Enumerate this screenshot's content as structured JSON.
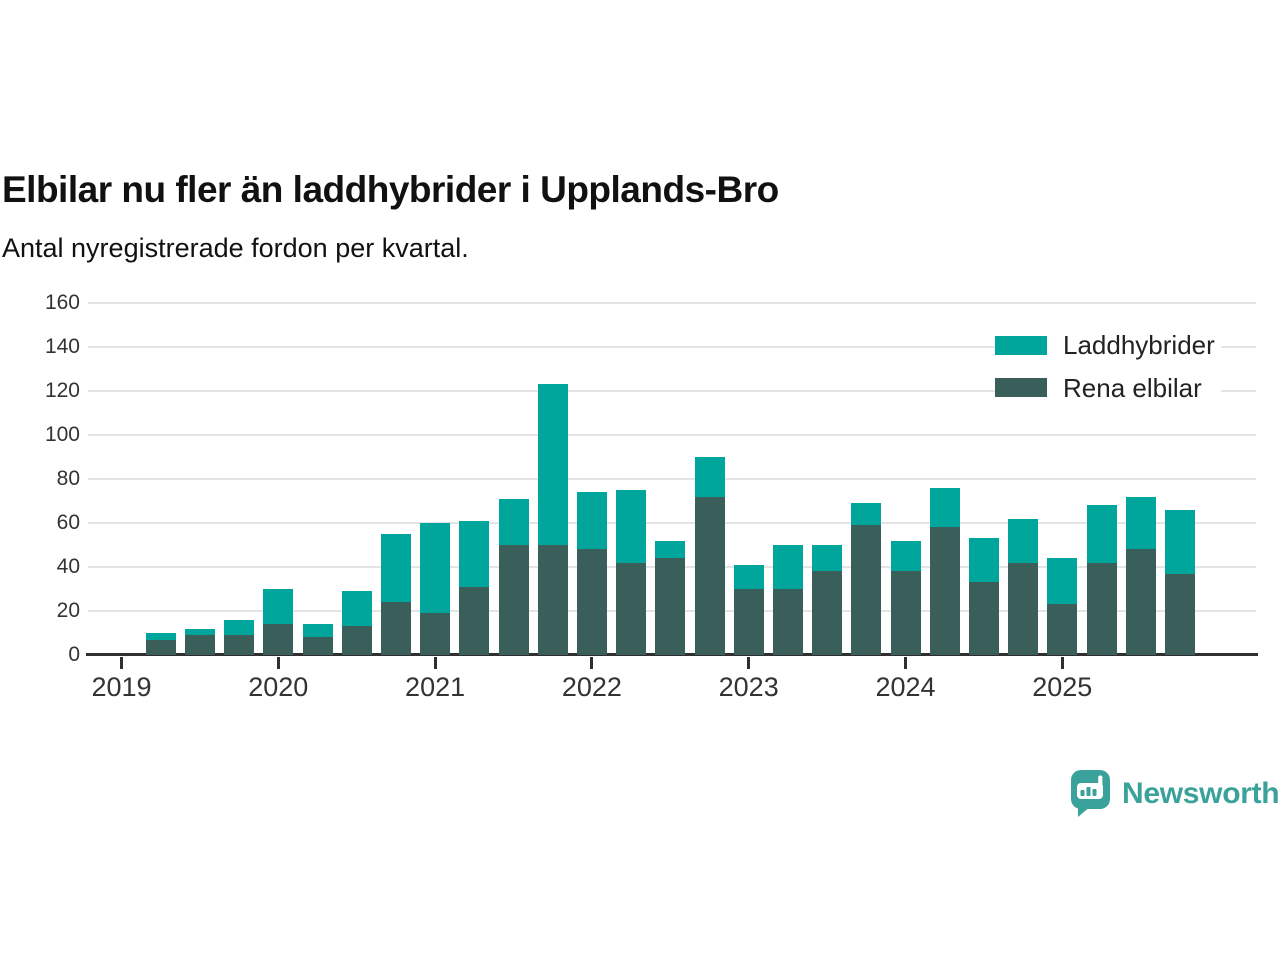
{
  "header": {
    "title": "Elbilar nu fler än laddhybrider i Upplands-Bro",
    "subtitle": "Antal nyregistrerade fordon per kvartal."
  },
  "legend": {
    "items": [
      {
        "label": "Laddhybrider",
        "color": "#00a69b"
      },
      {
        "label": "Rena elbilar",
        "color": "#3a5f5a"
      }
    ]
  },
  "footer": {
    "brand": "Newsworthy",
    "brand_color": "#3ba29b"
  },
  "colors": {
    "laddhybrider": "#00a69b",
    "rena_elbilar": "#3a5f5a",
    "grid": "#e4e4e4",
    "axis": "#2f2f2f",
    "tick_text": "#333333",
    "title_text": "#111111"
  },
  "chart_data": {
    "type": "bar",
    "stacked": true,
    "title": "Elbilar nu fler än laddhybrider i Upplands-Bro",
    "subtitle": "Antal nyregistrerade fordon per kvartal.",
    "xlabel": "",
    "ylabel": "",
    "ylim": [
      0,
      160
    ],
    "yticks": [
      0,
      20,
      40,
      60,
      80,
      100,
      120,
      140,
      160
    ],
    "grid": true,
    "legend_position": "top-right",
    "categories": [
      "2019 Q1",
      "2019 Q2",
      "2019 Q3",
      "2019 Q4",
      "2020 Q1",
      "2020 Q2",
      "2020 Q3",
      "2020 Q4",
      "2021 Q1",
      "2021 Q2",
      "2021 Q3",
      "2021 Q4",
      "2022 Q1",
      "2022 Q2",
      "2022 Q3",
      "2022 Q4",
      "2023 Q1",
      "2023 Q2",
      "2023 Q3",
      "2023 Q4",
      "2024 Q1",
      "2024 Q2",
      "2024 Q3",
      "2024 Q4",
      "2025 Q1",
      "2025 Q2",
      "2025 Q3",
      "2025 Q4"
    ],
    "year_ticks": [
      "2019",
      "2020",
      "2021",
      "2022",
      "2023",
      "2024",
      "2025"
    ],
    "series": [
      {
        "name": "Rena elbilar",
        "color": "#3a5f5a",
        "values": [
          0,
          7,
          9,
          9,
          14,
          8,
          13,
          24,
          19,
          31,
          50,
          50,
          48,
          42,
          44,
          72,
          30,
          30,
          38,
          59,
          38,
          58,
          33,
          42,
          23,
          42,
          48,
          37
        ]
      },
      {
        "name": "Laddhybrider",
        "color": "#00a69b",
        "values": [
          0,
          3,
          3,
          7,
          16,
          6,
          16,
          31,
          41,
          30,
          21,
          73,
          26,
          33,
          8,
          18,
          11,
          20,
          12,
          10,
          14,
          18,
          20,
          20,
          21,
          26,
          24,
          29
        ]
      }
    ]
  }
}
